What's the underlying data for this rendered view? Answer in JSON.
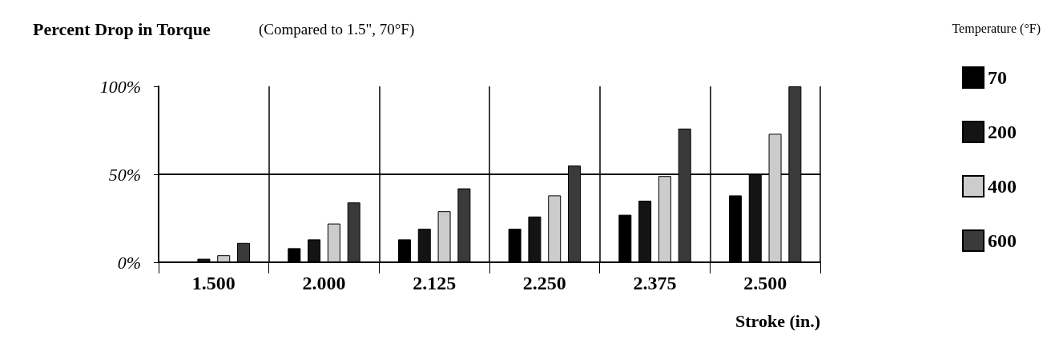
{
  "chart_data": {
    "type": "bar",
    "title": "Percent Drop in Torque",
    "subtitle": "(Compared to 1.5\", 70°F)",
    "xlabel": "Stroke (in.)",
    "legend_title": "Temperature (°F)",
    "categories": [
      "1.500",
      "2.000",
      "2.125",
      "2.250",
      "2.375",
      "2.500"
    ],
    "series": [
      {
        "name": "70",
        "color": "#000000",
        "values": [
          0,
          8,
          13,
          19,
          27,
          38
        ]
      },
      {
        "name": "200",
        "color": "#141414",
        "values": [
          2,
          13,
          19,
          26,
          35,
          50
        ]
      },
      {
        "name": "400",
        "color": "#cccccc",
        "values": [
          4,
          22,
          29,
          38,
          49,
          73
        ]
      },
      {
        "name": "600",
        "color": "#3a3a3a",
        "values": [
          11,
          34,
          42,
          55,
          76,
          100
        ]
      }
    ],
    "ylim": [
      0,
      100
    ],
    "yticks": [
      {
        "value": 0,
        "label": "0%"
      },
      {
        "value": 50,
        "label": "50%"
      },
      {
        "value": 100,
        "label": "100%"
      }
    ],
    "ref_lines": [
      {
        "axis": "y",
        "value": 50
      }
    ],
    "grid": "x",
    "legend": "right"
  }
}
